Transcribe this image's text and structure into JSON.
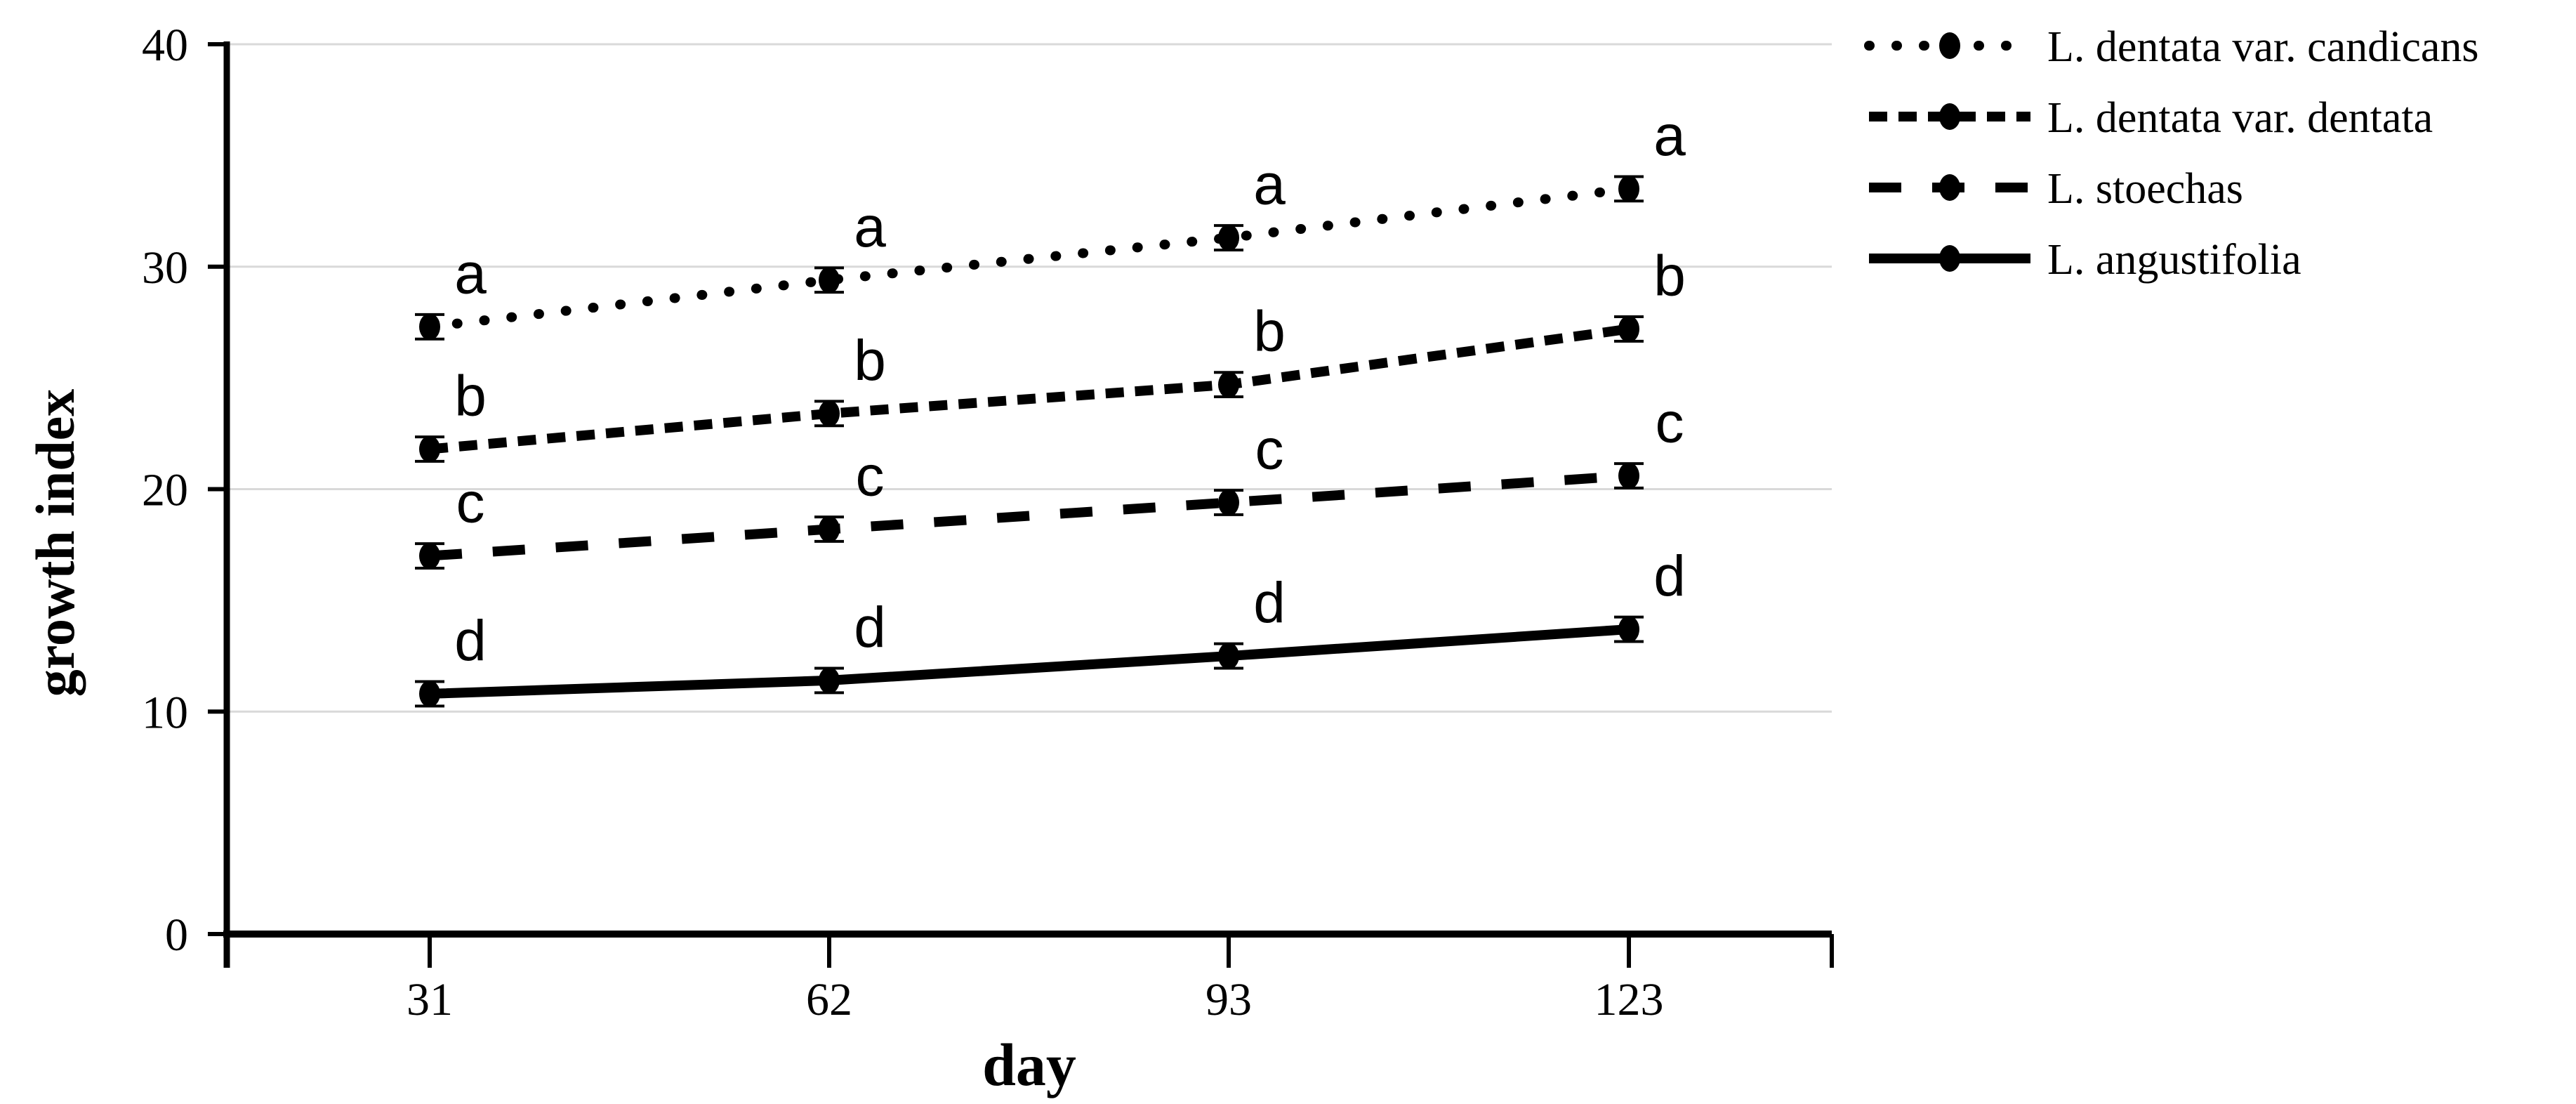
{
  "chart_data": {
    "type": "line",
    "title": "",
    "xlabel": "day",
    "ylabel": "growth index",
    "x_categories": [
      "31",
      "62",
      "93",
      "123"
    ],
    "y_ticks": [
      "0",
      "10",
      "20",
      "30",
      "40"
    ],
    "ylim": [
      0,
      40
    ],
    "grid": "horizontal",
    "gridline_color": "#d9d9d9",
    "axis_color": "#000000",
    "series_color": "#000000",
    "legend_position": "right-top",
    "error_bar": 0.55,
    "series": [
      {
        "name": "L. dentata var. candicans",
        "line_style": "dotted",
        "point_label": "a",
        "values": [
          27.3,
          29.4,
          31.3,
          33.5
        ]
      },
      {
        "name": "L. dentata var. dentata",
        "line_style": "dashed",
        "point_label": "b",
        "values": [
          21.8,
          23.4,
          24.7,
          27.2
        ]
      },
      {
        "name": "L. stoechas",
        "line_style": "long-dash",
        "point_label": "c",
        "values": [
          17.0,
          18.2,
          19.4,
          20.6
        ]
      },
      {
        "name": "L. angustifolia",
        "line_style": "solid",
        "point_label": "d",
        "values": [
          10.8,
          11.4,
          12.5,
          13.7
        ]
      }
    ]
  }
}
